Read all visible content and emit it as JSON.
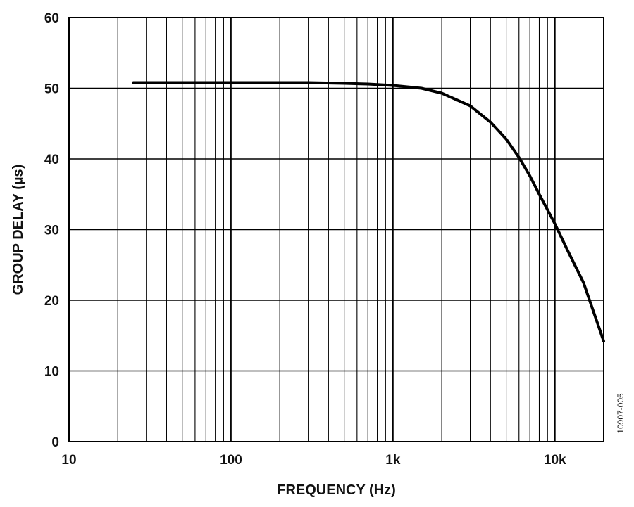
{
  "chart_data": {
    "type": "line",
    "title": "",
    "xlabel": "FREQUENCY (Hz)",
    "ylabel": "GROUP DELAY (µs)",
    "xscale": "log",
    "xlim": [
      10,
      20000
    ],
    "ylim": [
      0,
      60
    ],
    "grid": true,
    "figure_id": "10907-005",
    "x_ticks": [
      {
        "value": 10,
        "label": "10"
      },
      {
        "value": 100,
        "label": "100"
      },
      {
        "value": 1000,
        "label": "1k"
      },
      {
        "value": 10000,
        "label": "10k"
      }
    ],
    "y_ticks": [
      {
        "value": 0,
        "label": "0"
      },
      {
        "value": 10,
        "label": "10"
      },
      {
        "value": 20,
        "label": "20"
      },
      {
        "value": 30,
        "label": "30"
      },
      {
        "value": 40,
        "label": "40"
      },
      {
        "value": 50,
        "label": "50"
      },
      {
        "value": 60,
        "label": "60"
      }
    ],
    "series": [
      {
        "color": "#000000",
        "x": [
          25,
          50,
          100,
          200,
          300,
          500,
          700,
          1000,
          1500,
          2000,
          3000,
          4000,
          5000,
          6000,
          7000,
          8000,
          9000,
          10000,
          12000,
          15000,
          20000
        ],
        "y": [
          50.8,
          50.8,
          50.8,
          50.8,
          50.8,
          50.7,
          50.6,
          50.4,
          50.0,
          49.3,
          47.5,
          45.2,
          42.8,
          40.2,
          37.6,
          35.0,
          32.8,
          30.8,
          27.0,
          22.5,
          14.2
        ]
      }
    ]
  }
}
